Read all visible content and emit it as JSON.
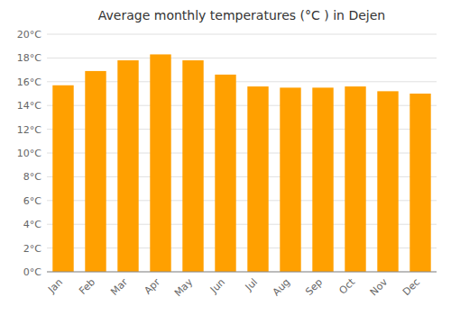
{
  "chart_data": {
    "type": "bar",
    "title": "Average monthly temperatures (°C ) in Dejen",
    "categories": [
      "Jan",
      "Feb",
      "Mar",
      "Apr",
      "May",
      "Jun",
      "Jul",
      "Aug",
      "Sep",
      "Oct",
      "Nov",
      "Dec"
    ],
    "values": [
      15.7,
      16.9,
      17.8,
      18.3,
      17.8,
      16.6,
      15.6,
      15.5,
      15.5,
      15.6,
      15.2,
      15.0
    ],
    "color": "#FFA000",
    "ylim": [
      0,
      20
    ],
    "yticks": [
      {
        "value": 0,
        "label": "0°C"
      },
      {
        "value": 2,
        "label": "2°C"
      },
      {
        "value": 4,
        "label": "4°C"
      },
      {
        "value": 6,
        "label": "6°C"
      },
      {
        "value": 8,
        "label": "8°C"
      },
      {
        "value": 10,
        "label": "10°C"
      },
      {
        "value": 12,
        "label": "12°C"
      },
      {
        "value": 14,
        "label": "14°C"
      },
      {
        "value": 16,
        "label": "16°C"
      },
      {
        "value": 18,
        "label": "18°C"
      },
      {
        "value": 20,
        "label": "20°C"
      }
    ],
    "grid": true
  }
}
